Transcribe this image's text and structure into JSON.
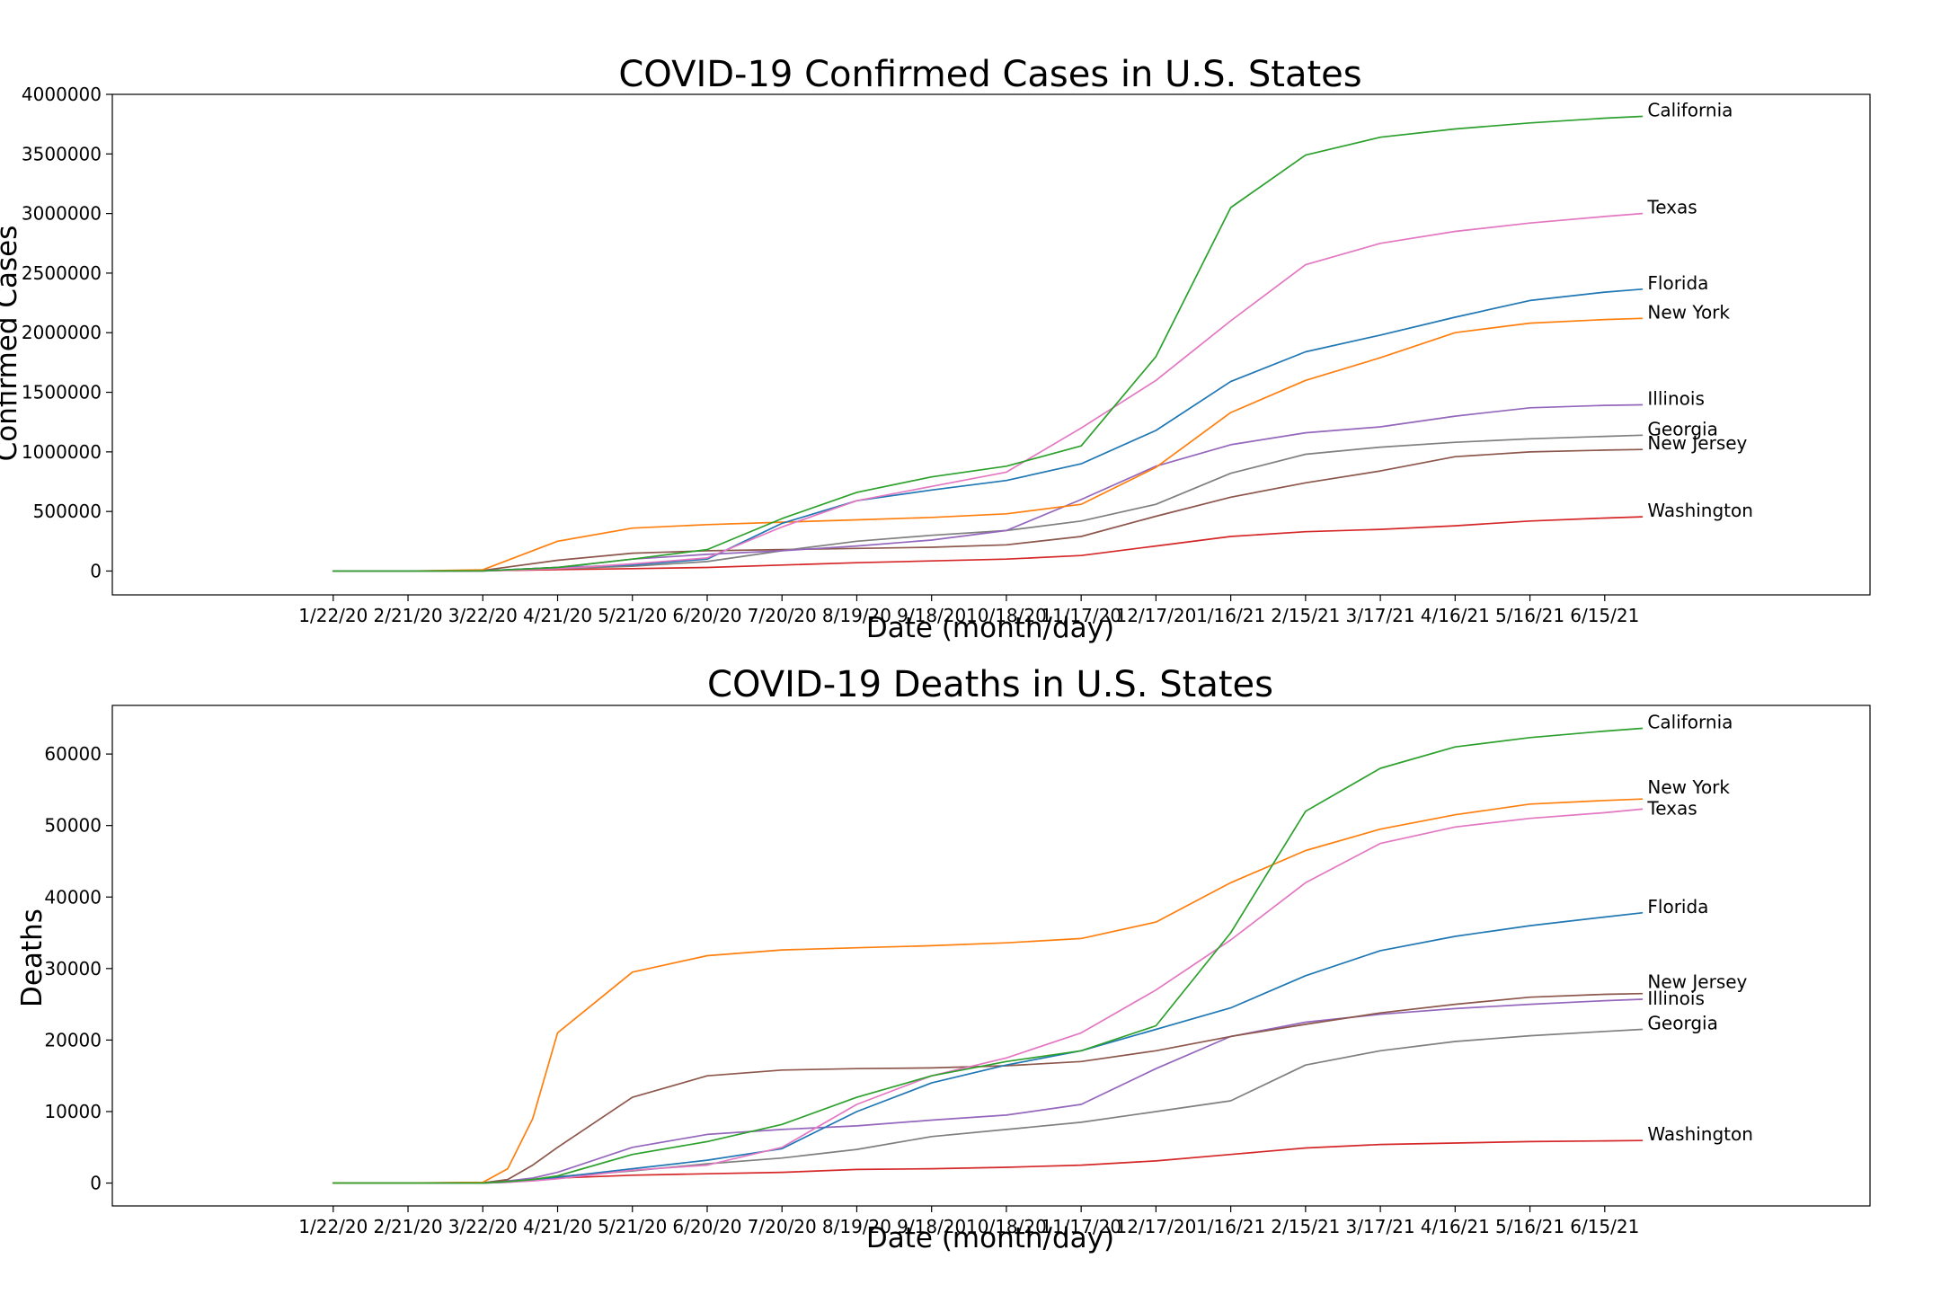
{
  "colors": {
    "California": "#2ca02c",
    "Texas": "#e377c2",
    "Florida": "#1f77b4",
    "New York": "#ff7f0e",
    "Illinois": "#9467bd",
    "Georgia": "#7f7f7f",
    "New Jersey": "#8c564b",
    "Washington": "#d62728"
  },
  "chart_data": [
    {
      "type": "line",
      "title": "COVID-19 Confirmed Cases in U.S. States",
      "xlabel": "Date (month/day)",
      "ylabel": "Confirmed Cases",
      "x_ticks": [
        "1/22/20",
        "2/21/20",
        "3/22/20",
        "4/21/20",
        "5/21/20",
        "6/20/20",
        "7/20/20",
        "8/19/20",
        "9/18/20",
        "10/18/20",
        "11/17/20",
        "12/17/20",
        "1/16/21",
        "2/15/21",
        "3/17/21",
        "4/16/21",
        "5/16/21",
        "6/15/21"
      ],
      "y_ticks": [
        0,
        500000,
        1000000,
        1500000,
        2000000,
        2500000,
        3000000,
        3500000,
        4000000
      ],
      "ylim": [
        -200000,
        4000000
      ],
      "x": [
        "1/22/20",
        "2/21/20",
        "3/22/20",
        "4/21/20",
        "5/21/20",
        "6/20/20",
        "7/20/20",
        "8/19/20",
        "9/18/20",
        "10/18/20",
        "11/17/20",
        "12/17/20",
        "1/16/21",
        "2/15/21",
        "3/17/21",
        "4/16/21",
        "5/16/21",
        "6/15/21",
        "6/30/21"
      ],
      "grid": false,
      "legend": "end-of-line labels",
      "series": [
        {
          "name": "California",
          "values": [
            0,
            0,
            1000,
            30000,
            100000,
            180000,
            440000,
            660000,
            790000,
            880000,
            1050000,
            1800000,
            3050000,
            3490000,
            3640000,
            3710000,
            3760000,
            3800000,
            3815000
          ]
        },
        {
          "name": "Texas",
          "values": [
            0,
            0,
            500,
            20000,
            60000,
            110000,
            370000,
            590000,
            710000,
            830000,
            1200000,
            1600000,
            2100000,
            2570000,
            2750000,
            2850000,
            2920000,
            2975000,
            3000000
          ]
        },
        {
          "name": "Florida",
          "values": [
            0,
            0,
            500,
            30000,
            50000,
            100000,
            400000,
            590000,
            680000,
            760000,
            900000,
            1180000,
            1590000,
            1840000,
            1980000,
            2130000,
            2270000,
            2340000,
            2365000
          ]
        },
        {
          "name": "New York",
          "values": [
            0,
            0,
            10000,
            250000,
            360000,
            390000,
            410000,
            430000,
            450000,
            480000,
            560000,
            870000,
            1330000,
            1600000,
            1790000,
            2000000,
            2080000,
            2110000,
            2120000
          ]
        },
        {
          "name": "Illinois",
          "values": [
            0,
            0,
            1000,
            30000,
            100000,
            140000,
            170000,
            210000,
            260000,
            340000,
            600000,
            880000,
            1060000,
            1160000,
            1210000,
            1300000,
            1370000,
            1390000,
            1395000
          ]
        },
        {
          "name": "Georgia",
          "values": [
            0,
            0,
            1000,
            20000,
            40000,
            80000,
            170000,
            250000,
            300000,
            340000,
            420000,
            560000,
            820000,
            980000,
            1040000,
            1080000,
            1110000,
            1130000,
            1140000
          ]
        },
        {
          "name": "New Jersey",
          "values": [
            0,
            0,
            5000,
            90000,
            150000,
            170000,
            180000,
            190000,
            200000,
            220000,
            290000,
            460000,
            620000,
            740000,
            840000,
            960000,
            1000000,
            1015000,
            1020000
          ]
        },
        {
          "name": "Washington",
          "values": [
            0,
            0,
            2000,
            12000,
            20000,
            30000,
            50000,
            70000,
            85000,
            100000,
            130000,
            210000,
            290000,
            330000,
            350000,
            380000,
            420000,
            445000,
            455000
          ]
        }
      ]
    },
    {
      "type": "line",
      "title": "COVID-19 Deaths in U.S. States",
      "xlabel": "Date (month/day)",
      "ylabel": "Deaths",
      "x_ticks": [
        "1/22/20",
        "2/21/20",
        "3/22/20",
        "4/21/20",
        "5/21/20",
        "6/20/20",
        "7/20/20",
        "8/19/20",
        "9/18/20",
        "10/18/20",
        "11/17/20",
        "12/17/20",
        "1/16/21",
        "2/15/21",
        "3/17/21",
        "4/16/21",
        "5/16/21",
        "6/15/21"
      ],
      "y_ticks": [
        0,
        10000,
        20000,
        30000,
        40000,
        50000,
        60000
      ],
      "ylim": [
        -3200,
        66800
      ],
      "x": [
        "1/22/20",
        "2/21/20",
        "3/22/20",
        "4/1/20",
        "4/11/20",
        "4/21/20",
        "5/21/20",
        "6/20/20",
        "7/20/20",
        "8/19/20",
        "9/18/20",
        "10/18/20",
        "11/17/20",
        "12/17/20",
        "1/16/21",
        "2/15/21",
        "3/17/21",
        "4/16/21",
        "5/16/21",
        "6/15/21",
        "6/30/21"
      ],
      "grid": false,
      "legend": "end-of-line labels",
      "series": [
        {
          "name": "California",
          "values": [
            0,
            0,
            10,
            200,
            500,
            1000,
            4000,
            5800,
            8200,
            12000,
            15000,
            17000,
            18500,
            22000,
            35000,
            52000,
            58000,
            61000,
            62300,
            63200,
            63600
          ]
        },
        {
          "name": "New York",
          "values": [
            0,
            0,
            100,
            2000,
            9000,
            21000,
            29500,
            31800,
            32600,
            32900,
            33200,
            33600,
            34200,
            36500,
            42000,
            46500,
            49500,
            51500,
            53000,
            53500,
            53700
          ]
        },
        {
          "name": "Texas",
          "values": [
            0,
            0,
            10,
            100,
            300,
            600,
            1800,
            2500,
            5000,
            11000,
            15000,
            17500,
            21000,
            27000,
            34000,
            42000,
            47500,
            49800,
            51000,
            51800,
            52300
          ]
        },
        {
          "name": "Florida",
          "values": [
            0,
            0,
            10,
            100,
            400,
            800,
            2000,
            3200,
            4800,
            10000,
            14000,
            16500,
            18500,
            21500,
            24500,
            29000,
            32500,
            34500,
            36000,
            37200,
            37800
          ]
        },
        {
          "name": "New Jersey",
          "values": [
            0,
            0,
            20,
            500,
            2500,
            5000,
            12000,
            15000,
            15800,
            16000,
            16100,
            16400,
            17000,
            18500,
            20500,
            22200,
            23800,
            25000,
            26000,
            26400,
            26500
          ]
        },
        {
          "name": "Illinois",
          "values": [
            0,
            0,
            10,
            300,
            700,
            1500,
            5000,
            6800,
            7500,
            8000,
            8800,
            9500,
            11000,
            16000,
            20500,
            22500,
            23600,
            24400,
            25000,
            25500,
            25700
          ]
        },
        {
          "name": "Georgia",
          "values": [
            0,
            0,
            10,
            200,
            500,
            900,
            1700,
            2700,
            3500,
            4700,
            6500,
            7500,
            8500,
            10000,
            11500,
            16500,
            18500,
            19800,
            20600,
            21200,
            21500
          ]
        },
        {
          "name": "Washington",
          "values": [
            0,
            0,
            50,
            300,
            500,
            700,
            1100,
            1300,
            1500,
            1900,
            2000,
            2200,
            2500,
            3100,
            4000,
            4900,
            5400,
            5600,
            5800,
            5900,
            5950
          ]
        }
      ]
    }
  ]
}
